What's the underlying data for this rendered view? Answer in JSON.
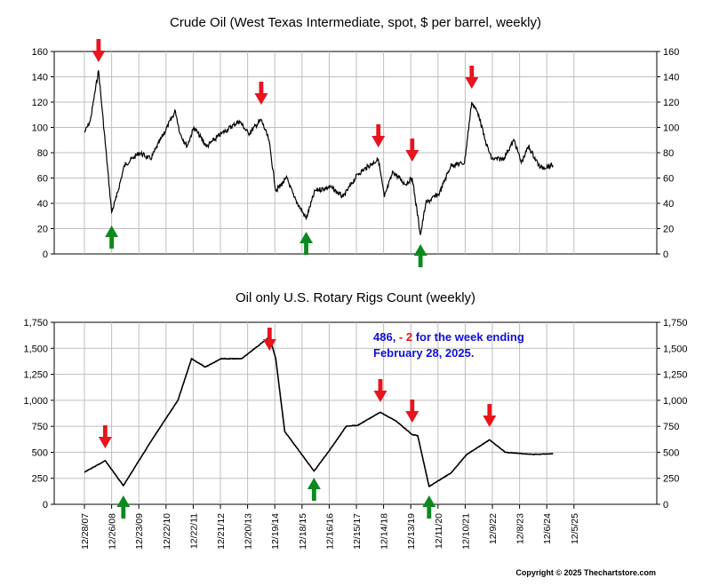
{
  "chart_data": [
    {
      "type": "line",
      "title": "Crude Oil (West Texas Intermediate, spot, $ per barrel, weekly)",
      "ylim": [
        0,
        160
      ],
      "yticks": [
        "0",
        "20",
        "40",
        "60",
        "80",
        "100",
        "120",
        "140",
        "160"
      ],
      "x_start": "2007-12-28",
      "series": [
        {
          "x": [
            "2007-12-28",
            "2008-03-15",
            "2008-07-04",
            "2008-08-20",
            "2008-12-26",
            "2009-03-01",
            "2009-06-15",
            "2010-01-01",
            "2010-06-01",
            "2011-04-29",
            "2011-07-01",
            "2011-10-01",
            "2012-01-01",
            "2012-06-20",
            "2013-01-01",
            "2013-09-01",
            "2014-01-01",
            "2014-06-20",
            "2014-10-01",
            "2015-01-01",
            "2015-06-01",
            "2015-09-01",
            "2016-02-12",
            "2016-06-10",
            "2017-01-01",
            "2017-06-20",
            "2018-01-01",
            "2018-10-05",
            "2018-12-24",
            "2019-04-20",
            "2019-10-01",
            "2020-01-01",
            "2020-04-21",
            "2020-07-01",
            "2020-12-31",
            "2021-06-01",
            "2021-12-01",
            "2022-03-08",
            "2022-06-10",
            "2022-09-01",
            "2022-12-01",
            "2023-05-01",
            "2023-09-27",
            "2024-01-01",
            "2024-04-05",
            "2024-09-10",
            "2025-02-28"
          ],
          "y": [
            96,
            105,
            145,
            115,
            33,
            45,
            70,
            80,
            75,
            113,
            95,
            85,
            100,
            85,
            95,
            105,
            95,
            106,
            90,
            50,
            60,
            45,
            28,
            50,
            53,
            45,
            63,
            75,
            45,
            65,
            55,
            60,
            15,
            40,
            48,
            70,
            72,
            120,
            110,
            90,
            75,
            75,
            90,
            72,
            85,
            68,
            70
          ]
        }
      ],
      "peak_arrows": [
        "2008-07-04",
        "2014-06-20",
        "2018-10-05",
        "2020-01-01",
        "2022-03-08"
      ],
      "trough_arrows": [
        "2008-12-26",
        "2016-02-12",
        "2020-04-21"
      ]
    },
    {
      "type": "line",
      "title": "Oil only U.S. Rotary Rigs Count (weekly)",
      "ylim": [
        0,
        1750
      ],
      "yticks": [
        "0",
        "250",
        "500",
        "750",
        "1,000",
        "1,250",
        "1,500",
        "1,750"
      ],
      "x_start": "2007-12-28",
      "xticks": [
        "12/28/07",
        "12/26/08",
        "12/23/09",
        "12/22/10",
        "12/22/11",
        "12/21/12",
        "12/20/13",
        "12/19/14",
        "12/18/15",
        "12/16/16",
        "12/15/17",
        "12/14/18",
        "12/13/19",
        "12/11/20",
        "12/10/21",
        "12/9/22",
        "12/8/23",
        "12/6/24",
        "12/5/25"
      ],
      "series": [
        {
          "x": [
            "2007-12-28",
            "2008-06-01",
            "2008-10-01",
            "2009-06-01",
            "2010-06-01",
            "2011-06-01",
            "2011-12-01",
            "2012-06-01",
            "2013-01-01",
            "2013-10-01",
            "2014-10-10",
            "2015-01-01",
            "2015-05-01",
            "2016-05-27",
            "2016-12-01",
            "2017-08-01",
            "2018-01-01",
            "2018-11-01",
            "2019-06-01",
            "2020-01-01",
            "2020-03-15",
            "2020-08-14",
            "2021-06-01",
            "2022-01-01",
            "2022-11-01",
            "2023-06-01",
            "2024-06-01",
            "2025-02-28"
          ],
          "y": [
            310,
            370,
            420,
            180,
            600,
            1000,
            1400,
            1320,
            1400,
            1400,
            1610,
            1400,
            700,
            320,
            500,
            750,
            760,
            885,
            800,
            670,
            660,
            172,
            300,
            480,
            620,
            500,
            480,
            486
          ]
        }
      ],
      "annotation": {
        "value_text": "486, ",
        "change_text": "- 2",
        "rest_text": " for the week ending",
        "line2": "February 28, 2025."
      },
      "peak_arrows": [
        "2008-10-01",
        "2014-10-10",
        "2018-11-01",
        "2020-01-01",
        "2022-11-01"
      ],
      "trough_arrows": [
        "2009-06-01",
        "2016-05-27",
        "2020-08-14"
      ]
    }
  ],
  "copyright": "Copyright © 2025 Thechartstore.com",
  "colors": {
    "red_arrow": "#e8141e",
    "green_arrow": "#0c8a1e",
    "annotation_blue": "#1010d6",
    "annotation_red": "#e8141e",
    "grid": "#bfbfbf"
  }
}
